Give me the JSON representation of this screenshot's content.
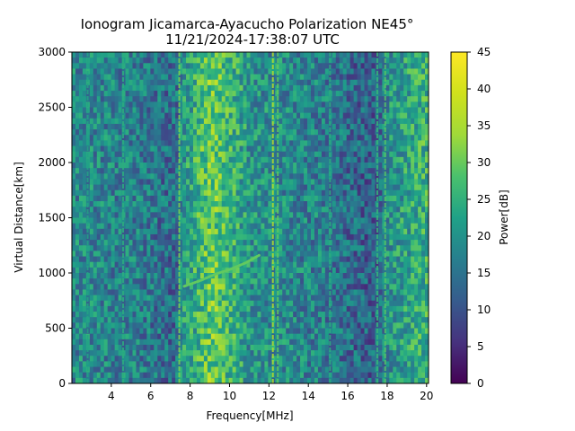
{
  "chart_data": {
    "type": "heatmap",
    "title": "Ionogram Jicamarca-Ayacucho Polarization NE45°",
    "subtitle": "11/21/2024-17:38:07 UTC",
    "xlabel": "Frequency[MHz]",
    "ylabel": "Virtual Distance[km]",
    "xlim": [
      2.0,
      20.1
    ],
    "ylim": [
      0,
      3000
    ],
    "x_ticks": [
      4,
      6,
      8,
      10,
      12,
      14,
      16,
      18,
      20
    ],
    "y_ticks": [
      0,
      500,
      1000,
      1500,
      2000,
      2500,
      3000
    ],
    "colorbar": {
      "label": "Power[dB]",
      "min": 0,
      "max": 45,
      "ticks": [
        0,
        5,
        10,
        15,
        20,
        25,
        30,
        35,
        40,
        45
      ],
      "colormap": "viridis"
    },
    "background_power_profile": {
      "frequency_mhz": [
        2.0,
        3.0,
        4.0,
        5.0,
        6.0,
        7.0,
        7.3,
        7.6,
        8.0,
        8.5,
        9.0,
        9.5,
        10.0,
        10.5,
        11.0,
        12.0,
        13.0,
        14.0,
        15.0,
        16.0,
        17.0,
        17.5,
        18.0,
        19.0,
        20.1
      ],
      "power_db": [
        21,
        21,
        20,
        20,
        18,
        16,
        16,
        24,
        26,
        30,
        33,
        32,
        29,
        27,
        23,
        22,
        21,
        20,
        19,
        16,
        14,
        15,
        22,
        26,
        29
      ]
    },
    "interference_lines_mhz": [
      {
        "frequency": 2.8,
        "power_db": 26
      },
      {
        "frequency": 4.6,
        "power_db": 28
      },
      {
        "frequency": 7.45,
        "power_db": 36
      },
      {
        "frequency": 12.2,
        "power_db": 40
      },
      {
        "frequency": 12.45,
        "power_db": 34
      },
      {
        "frequency": 15.1,
        "power_db": 28
      },
      {
        "frequency": 17.5,
        "power_db": 30
      },
      {
        "frequency": 17.9,
        "power_db": 33
      }
    ],
    "echo_trace": {
      "frequency_mhz": [
        7.7,
        8.5,
        9.3,
        10.0,
        10.8,
        11.5
      ],
      "virtual_distance_km": [
        880,
        930,
        990,
        1030,
        1090,
        1160
      ],
      "power_db": 34
    }
  }
}
